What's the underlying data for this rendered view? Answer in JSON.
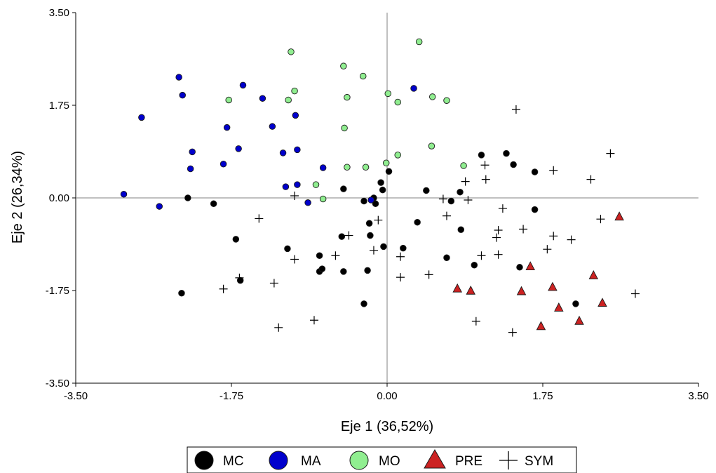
{
  "chart_data": {
    "type": "scatter",
    "title": "",
    "xlabel": "Eje 1 (36,52%)",
    "ylabel": "Eje 2 (26,34%)",
    "xlim": [
      -3.5,
      3.5
    ],
    "ylim": [
      -3.5,
      3.5
    ],
    "x_ticks": [
      "-3.50",
      "-1.75",
      "0.00",
      "1.75",
      "3.50"
    ],
    "y_ticks": [
      "3.50",
      "1.75",
      "0.00",
      "-1.75",
      "-3.50"
    ],
    "grid": false,
    "reference_lines": [
      0,
      0
    ],
    "legend_position": "bottom-center",
    "series": [
      {
        "name": "MC",
        "marker": "circle",
        "color": "#000000",
        "points": [
          [
            -2.24,
            0.0
          ],
          [
            -1.95,
            -0.11
          ],
          [
            -2.31,
            -1.8
          ],
          [
            -1.7,
            -0.78
          ],
          [
            -1.65,
            -1.56
          ],
          [
            -1.12,
            -0.96
          ],
          [
            -0.76,
            -1.39
          ],
          [
            -0.73,
            -1.34
          ],
          [
            -0.76,
            -1.09
          ],
          [
            -0.49,
            0.17
          ],
          [
            -0.51,
            -0.73
          ],
          [
            -0.49,
            -1.39
          ],
          [
            -0.2,
            -0.48
          ],
          [
            -0.19,
            -0.71
          ],
          [
            -0.22,
            -1.37
          ],
          [
            -0.26,
            -0.06
          ],
          [
            -0.26,
            -2.0
          ],
          [
            -0.13,
            -0.11
          ],
          [
            -0.15,
            0.0
          ],
          [
            -0.07,
            0.29
          ],
          [
            -0.05,
            0.15
          ],
          [
            0.02,
            0.5
          ],
          [
            -0.04,
            -0.92
          ],
          [
            0.18,
            -0.95
          ],
          [
            0.34,
            -0.46
          ],
          [
            0.44,
            0.14
          ],
          [
            0.72,
            -0.06
          ],
          [
            0.82,
            0.11
          ],
          [
            0.67,
            -1.13
          ],
          [
            0.83,
            -0.6
          ],
          [
            0.98,
            -1.27
          ],
          [
            1.06,
            0.81
          ],
          [
            1.34,
            0.84
          ],
          [
            1.42,
            0.63
          ],
          [
            1.66,
            0.49
          ],
          [
            1.49,
            -1.31
          ],
          [
            1.66,
            -0.22
          ],
          [
            2.12,
            -2.0
          ]
        ]
      },
      {
        "name": "MA",
        "marker": "circle",
        "color": "#0000cc",
        "points": [
          [
            -2.96,
            0.07
          ],
          [
            -2.76,
            1.52
          ],
          [
            -2.56,
            -0.16
          ],
          [
            -2.34,
            2.28
          ],
          [
            -2.3,
            1.94
          ],
          [
            -2.21,
            0.55
          ],
          [
            -2.19,
            0.87
          ],
          [
            -1.84,
            0.64
          ],
          [
            -1.8,
            1.33
          ],
          [
            -1.67,
            0.93
          ],
          [
            -1.62,
            2.13
          ],
          [
            -1.4,
            1.88
          ],
          [
            -1.29,
            1.35
          ],
          [
            -1.17,
            0.85
          ],
          [
            -1.14,
            0.21
          ],
          [
            -1.01,
            0.25
          ],
          [
            -1.03,
            1.56
          ],
          [
            -1.01,
            0.91
          ],
          [
            -0.89,
            -0.09
          ],
          [
            -0.72,
            0.57
          ],
          [
            -0.18,
            -0.04
          ],
          [
            0.3,
            2.07
          ]
        ]
      },
      {
        "name": "MO",
        "marker": "circle",
        "color": "#90ee90",
        "points": [
          [
            -1.08,
            2.76
          ],
          [
            -1.78,
            1.85
          ],
          [
            -1.11,
            1.85
          ],
          [
            -1.04,
            2.02
          ],
          [
            -0.8,
            0.25
          ],
          [
            -0.72,
            -0.02
          ],
          [
            -0.49,
            2.49
          ],
          [
            -0.48,
            1.32
          ],
          [
            -0.45,
            1.9
          ],
          [
            -0.45,
            0.58
          ],
          [
            -0.27,
            2.3
          ],
          [
            -0.24,
            0.58
          ],
          [
            -0.01,
            0.66
          ],
          [
            0.01,
            1.97
          ],
          [
            0.12,
            1.81
          ],
          [
            0.12,
            0.81
          ],
          [
            0.36,
            2.95
          ],
          [
            0.51,
            1.91
          ],
          [
            0.5,
            0.98
          ],
          [
            0.67,
            1.84
          ],
          [
            0.86,
            0.61
          ]
        ]
      },
      {
        "name": "PRE",
        "marker": "triangle",
        "color": "#cc2222",
        "points": [
          [
            0.79,
            -1.72
          ],
          [
            0.94,
            -1.76
          ],
          [
            1.61,
            -1.3
          ],
          [
            1.51,
            -1.77
          ],
          [
            1.86,
            -1.69
          ],
          [
            1.93,
            -2.08
          ],
          [
            1.73,
            -2.43
          ],
          [
            2.16,
            -2.33
          ],
          [
            2.32,
            -1.47
          ],
          [
            2.42,
            -1.99
          ],
          [
            2.61,
            -0.36
          ]
        ]
      },
      {
        "name": "SYM",
        "marker": "plus",
        "color": "#000000",
        "points": [
          [
            -1.84,
            -1.72
          ],
          [
            -1.66,
            -1.51
          ],
          [
            -1.44,
            -0.39
          ],
          [
            -1.27,
            -1.61
          ],
          [
            -1.22,
            -2.45
          ],
          [
            -1.04,
            0.04
          ],
          [
            -1.04,
            -1.16
          ],
          [
            -0.82,
            -2.31
          ],
          [
            -0.58,
            -1.09
          ],
          [
            -0.43,
            -0.71
          ],
          [
            -0.15,
            -0.99
          ],
          [
            -0.1,
            -0.42
          ],
          [
            0.15,
            -1.11
          ],
          [
            0.15,
            -1.5
          ],
          [
            0.47,
            -1.45
          ],
          [
            0.63,
            -0.02
          ],
          [
            0.67,
            -0.34
          ],
          [
            0.88,
            0.31
          ],
          [
            0.91,
            -0.04
          ],
          [
            1.0,
            -2.33
          ],
          [
            1.06,
            -1.09
          ],
          [
            1.1,
            0.62
          ],
          [
            1.11,
            0.35
          ],
          [
            1.23,
            -0.75
          ],
          [
            1.25,
            -0.61
          ],
          [
            1.25,
            -1.07
          ],
          [
            1.3,
            -0.2
          ],
          [
            1.45,
            1.67
          ],
          [
            1.41,
            -2.54
          ],
          [
            1.53,
            -0.59
          ],
          [
            1.8,
            -0.97
          ],
          [
            1.87,
            0.52
          ],
          [
            1.87,
            -0.72
          ],
          [
            2.07,
            -0.79
          ],
          [
            2.29,
            0.35
          ],
          [
            2.4,
            -0.4
          ],
          [
            2.51,
            0.84
          ],
          [
            2.79,
            -1.81
          ]
        ]
      }
    ]
  }
}
